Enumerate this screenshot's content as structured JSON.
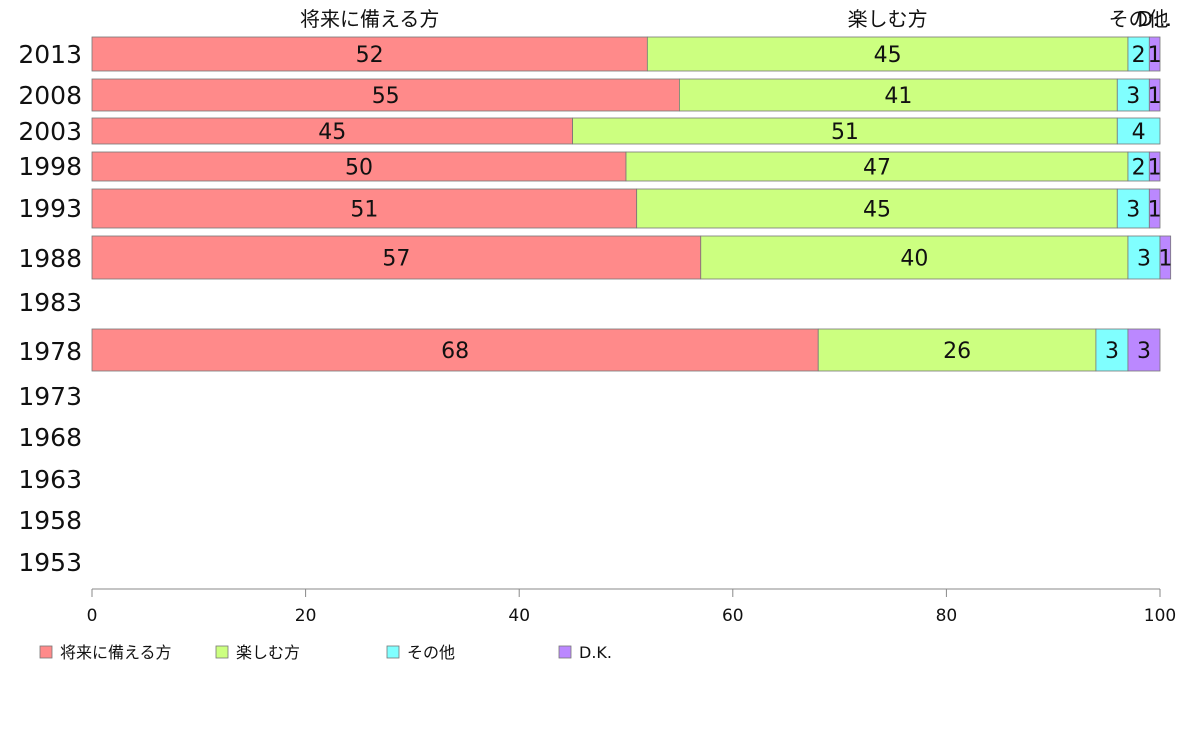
{
  "chart_data": {
    "type": "bar",
    "orientation": "horizontal",
    "stacked": true,
    "series": [
      {
        "name": "将来に備える方",
        "color": "#ff8a8a",
        "values": [
          52,
          55,
          45,
          50,
          51,
          57,
          null,
          68,
          null,
          null,
          null,
          null,
          null
        ]
      },
      {
        "name": "楽しむ方",
        "color": "#ccff80",
        "values": [
          45,
          41,
          51,
          47,
          45,
          40,
          null,
          26,
          null,
          null,
          null,
          null,
          null
        ]
      },
      {
        "name": "その他",
        "color": "#80ffff",
        "values": [
          2,
          3,
          4,
          2,
          3,
          3,
          null,
          3,
          null,
          null,
          null,
          null,
          null
        ]
      },
      {
        "name": "D.K.",
        "color": "#bb88ff",
        "values": [
          1,
          1,
          0,
          1,
          1,
          1,
          null,
          3,
          null,
          null,
          null,
          null,
          null
        ]
      }
    ],
    "categories": [
      "2013",
      "2008",
      "2003",
      "1998",
      "1993",
      "1988",
      "1983",
      "1978",
      "1973",
      "1968",
      "1963",
      "1958",
      "1953"
    ],
    "top_labels": [
      "将来に備える方",
      "楽しむ方",
      "その他",
      "D..."
    ],
    "xlim": [
      0,
      100
    ],
    "xticks": [
      0,
      20,
      40,
      60,
      80,
      100
    ],
    "xlabel": "",
    "ylabel": "",
    "title": "",
    "legend": {
      "position": "bottom-left",
      "entries": [
        "将来に備える方",
        "楽しむ方",
        "その他",
        "D.K."
      ]
    },
    "grid": false
  }
}
